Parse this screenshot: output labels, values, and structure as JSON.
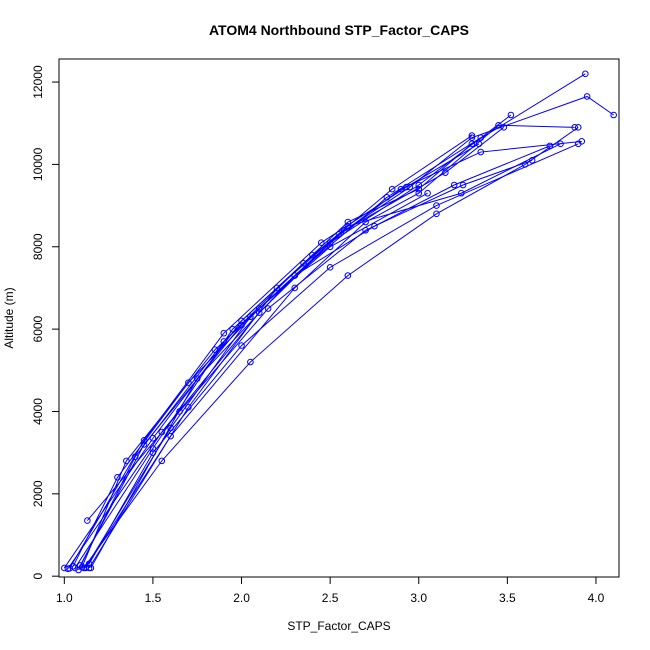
{
  "chart_data": {
    "type": "line",
    "title": "ATOM4 Northbound STP_Factor_CAPS",
    "xlabel": "STP_Factor_CAPS",
    "ylabel": "Altitude (m)",
    "xlim": [
      0.97,
      4.13
    ],
    "ylim": [
      -20,
      12560
    ],
    "xticks": [
      1.0,
      1.5,
      2.0,
      2.5,
      3.0,
      3.5,
      4.0
    ],
    "xtick_labels": [
      "1.0",
      "1.5",
      "2.0",
      "2.5",
      "3.0",
      "3.5",
      "4.0"
    ],
    "yticks": [
      0,
      2000,
      4000,
      6000,
      8000,
      10000,
      12000
    ],
    "ytick_labels": [
      "0",
      "2000",
      "4000",
      "6000",
      "8000",
      "10000",
      "12000"
    ],
    "grid": false,
    "legend": "none",
    "color": "#0000ff",
    "marker": "open-circle",
    "series": [
      {
        "x": [
          1.0,
          1.5,
          2.0,
          2.6,
          3.0,
          3.3,
          3.94
        ],
        "y": [
          200,
          3350,
          6200,
          8600,
          9400,
          10500,
          12200
        ]
      },
      {
        "x": [
          1.02,
          1.55,
          2.1,
          2.55,
          2.95,
          3.3,
          3.95,
          4.1
        ],
        "y": [
          180,
          3500,
          6400,
          8300,
          9450,
          10650,
          11650,
          11200
        ]
      },
      {
        "x": [
          1.12,
          1.6,
          2.3,
          2.7,
          3.0,
          3.45,
          3.88
        ],
        "y": [
          200,
          3400,
          7000,
          8600,
          9300,
          10950,
          10900
        ]
      },
      {
        "x": [
          1.14,
          1.7,
          2.2,
          2.6,
          3.24,
          3.8
        ],
        "y": [
          200,
          4100,
          7000,
          8500,
          9300,
          10500
        ]
      },
      {
        "x": [
          1.06,
          1.5,
          1.95,
          2.4,
          2.9,
          3.35,
          3.92
        ],
        "y": [
          200,
          3100,
          6000,
          7800,
          9400,
          10300,
          10560
        ]
      },
      {
        "x": [
          1.09,
          1.45,
          2.0,
          2.5,
          3.0,
          3.52
        ],
        "y": [
          260,
          3200,
          6100,
          8100,
          9500,
          11200
        ]
      },
      {
        "x": [
          1.11,
          1.55,
          2.05,
          2.6,
          3.1,
          3.6,
          3.9
        ],
        "y": [
          200,
          2800,
          5200,
          7300,
          8800,
          10000,
          10900
        ]
      },
      {
        "x": [
          1.08,
          1.4,
          1.9,
          2.35,
          2.85,
          3.3
        ],
        "y": [
          150,
          2900,
          5700,
          7600,
          9400,
          10700
        ]
      },
      {
        "x": [
          1.13,
          1.65,
          2.15,
          2.7,
          3.25,
          3.64
        ],
        "y": [
          1350,
          4000,
          6500,
          8400,
          9500,
          10100
        ]
      },
      {
        "x": [
          1.1,
          1.35,
          1.85,
          2.3,
          2.82,
          3.35
        ],
        "y": [
          220,
          2800,
          5500,
          7300,
          9200,
          10650
        ]
      },
      {
        "x": [
          1.15,
          1.75,
          2.3,
          2.75,
          3.2,
          3.74
        ],
        "y": [
          200,
          4800,
          7300,
          8500,
          9500,
          10450
        ]
      },
      {
        "x": [
          1.05,
          1.3,
          1.7,
          2.1,
          2.5,
          3.05
        ],
        "y": [
          240,
          2400,
          4700,
          6500,
          8000,
          9300
        ]
      },
      {
        "x": [
          1.03,
          1.45,
          1.9,
          2.45,
          2.93,
          3.34
        ],
        "y": [
          190,
          3300,
          5900,
          8100,
          9450,
          10500
        ]
      },
      {
        "x": [
          1.12,
          1.6,
          2.05,
          2.58,
          3.15,
          3.48
        ],
        "y": [
          210,
          3600,
          6300,
          8400,
          9800,
          10900
        ]
      },
      {
        "x": [
          1.14,
          1.5,
          2.0,
          2.5,
          3.1,
          3.9
        ],
        "y": [
          300,
          3000,
          5600,
          7500,
          9000,
          10500
        ]
      }
    ]
  }
}
